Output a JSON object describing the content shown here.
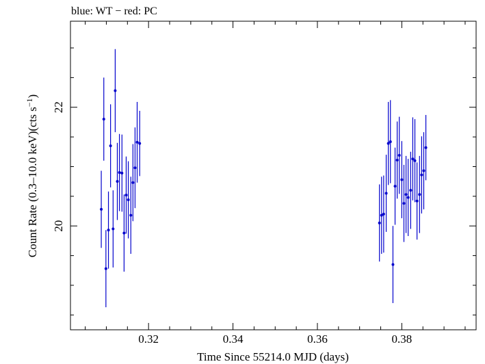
{
  "chart_data": {
    "type": "scatter",
    "title": "blue: WT − red: PC",
    "xlabel": "Time Since 55214.0 MJD (days)",
    "ylabel": "Count Rate (0.3–10.0 keV)(cts s",
    "ylabel_sup": "−1",
    "ylabel_tail": ")",
    "xlim": [
      0.3015,
      0.3976
    ],
    "ylim": [
      18.25,
      23.45
    ],
    "x_ticks": [
      0.32,
      0.34,
      0.36,
      0.38
    ],
    "x_tick_labels": [
      "0.32",
      "0.34",
      "0.36",
      "0.38"
    ],
    "y_ticks": [
      20,
      22
    ],
    "y_tick_labels": [
      "20",
      "22"
    ],
    "grid": false,
    "series": [
      {
        "color": "#0000cc",
        "points": [
          {
            "x": 0.3088,
            "y": 20.28,
            "err": 0.65
          },
          {
            "x": 0.3094,
            "y": 21.8,
            "err": 0.7
          },
          {
            "x": 0.3099,
            "y": 19.28,
            "err": 0.65
          },
          {
            "x": 0.3105,
            "y": 19.93,
            "err": 0.65
          },
          {
            "x": 0.311,
            "y": 21.35,
            "err": 0.7
          },
          {
            "x": 0.3116,
            "y": 19.95,
            "err": 0.65
          },
          {
            "x": 0.3121,
            "y": 22.28,
            "err": 0.7
          },
          {
            "x": 0.3126,
            "y": 20.75,
            "err": 0.65
          },
          {
            "x": 0.3131,
            "y": 20.9,
            "err": 0.65
          },
          {
            "x": 0.3137,
            "y": 20.89,
            "err": 0.65
          },
          {
            "x": 0.3142,
            "y": 19.88,
            "err": 0.65
          },
          {
            "x": 0.3147,
            "y": 20.52,
            "err": 0.65
          },
          {
            "x": 0.3152,
            "y": 20.44,
            "err": 0.65
          },
          {
            "x": 0.3158,
            "y": 20.18,
            "err": 0.65
          },
          {
            "x": 0.3163,
            "y": 20.73,
            "err": 0.65
          },
          {
            "x": 0.3168,
            "y": 20.98,
            "err": 0.68
          },
          {
            "x": 0.3173,
            "y": 21.41,
            "err": 0.68
          },
          {
            "x": 0.3179,
            "y": 21.39,
            "err": 0.55
          },
          {
            "x": 0.3747,
            "y": 20.05,
            "err": 0.65
          },
          {
            "x": 0.3752,
            "y": 20.18,
            "err": 0.65
          },
          {
            "x": 0.3757,
            "y": 20.2,
            "err": 0.65
          },
          {
            "x": 0.3763,
            "y": 20.55,
            "err": 0.65
          },
          {
            "x": 0.3768,
            "y": 21.39,
            "err": 0.7
          },
          {
            "x": 0.3773,
            "y": 21.42,
            "err": 0.7
          },
          {
            "x": 0.3779,
            "y": 19.35,
            "err": 0.65
          },
          {
            "x": 0.3784,
            "y": 20.67,
            "err": 0.65
          },
          {
            "x": 0.3789,
            "y": 21.11,
            "err": 0.65
          },
          {
            "x": 0.3794,
            "y": 21.19,
            "err": 0.65
          },
          {
            "x": 0.38,
            "y": 20.78,
            "err": 0.65
          },
          {
            "x": 0.3805,
            "y": 20.38,
            "err": 0.65
          },
          {
            "x": 0.381,
            "y": 20.53,
            "err": 0.65
          },
          {
            "x": 0.3815,
            "y": 20.48,
            "err": 0.65
          },
          {
            "x": 0.3821,
            "y": 20.6,
            "err": 0.65
          },
          {
            "x": 0.3826,
            "y": 21.13,
            "err": 0.7
          },
          {
            "x": 0.3831,
            "y": 21.1,
            "err": 0.7
          },
          {
            "x": 0.3836,
            "y": 20.42,
            "err": 0.65
          },
          {
            "x": 0.3842,
            "y": 20.53,
            "err": 0.65
          },
          {
            "x": 0.3847,
            "y": 20.86,
            "err": 0.65
          },
          {
            "x": 0.3852,
            "y": 20.93,
            "err": 0.65
          },
          {
            "x": 0.3857,
            "y": 21.32,
            "err": 0.55
          }
        ]
      }
    ]
  }
}
